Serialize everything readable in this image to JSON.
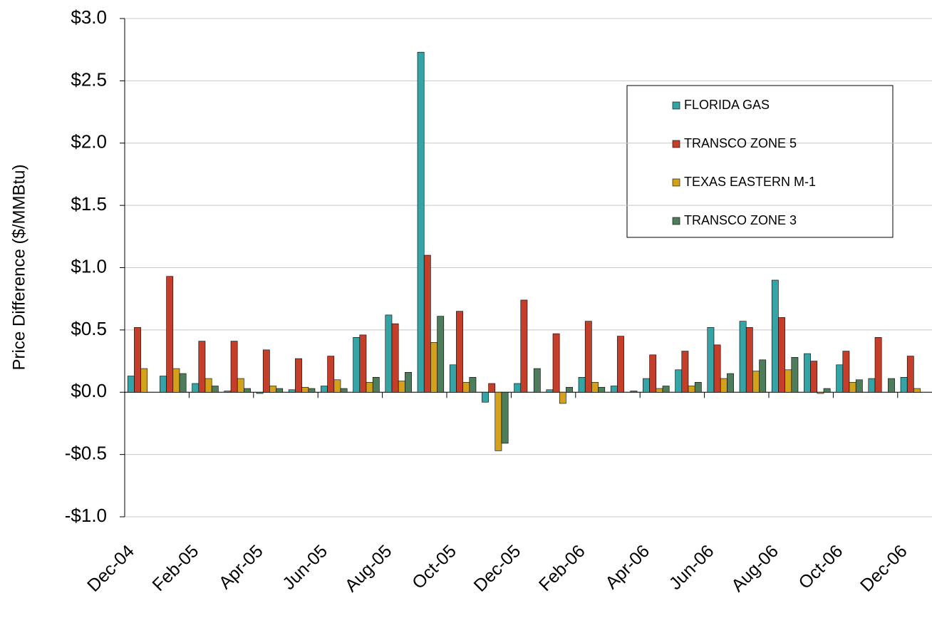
{
  "chart_data": {
    "type": "bar",
    "y_label": "Price Difference ($/MMBtu)",
    "categories": [
      "Dec-04",
      null,
      "Feb-05",
      null,
      "Apr-05",
      null,
      "Jun-05",
      null,
      "Aug-05",
      null,
      "Oct-05",
      null,
      "Dec-05",
      null,
      "Feb-06",
      null,
      "Apr-06",
      null,
      "Jun-06",
      null,
      "Aug-06",
      null,
      "Oct-06",
      null,
      "Dec-06"
    ],
    "series": [
      {
        "name": "FLORIDA GAS",
        "color": "#35a4a6",
        "values": [
          0.13,
          0.13,
          0.07,
          0.01,
          -0.01,
          0.02,
          0.05,
          0.44,
          0.62,
          2.73,
          0.22,
          -0.08,
          0.07,
          0.02,
          0.12,
          0.05,
          0.11,
          0.18,
          0.52,
          0.57,
          0.9,
          0.31,
          0.22,
          0.11,
          0.12
        ]
      },
      {
        "name": "TRANSCO ZONE 5",
        "color": "#c43e2a",
        "values": [
          0.52,
          0.93,
          0.41,
          0.41,
          0.34,
          0.27,
          0.29,
          0.46,
          0.55,
          1.1,
          0.65,
          0.07,
          0.74,
          0.47,
          0.57,
          0.45,
          0.3,
          0.33,
          0.38,
          0.52,
          0.6,
          0.25,
          0.33,
          0.44,
          0.29
        ]
      },
      {
        "name": "TEXAS EASTERN M-1",
        "color": "#d4a21a",
        "values": [
          0.19,
          0.19,
          0.11,
          0.11,
          0.05,
          0.04,
          0.1,
          0.08,
          0.09,
          0.4,
          0.08,
          -0.47,
          0,
          -0.09,
          0.08,
          0,
          0.03,
          0.05,
          0.11,
          0.17,
          0.18,
          -0.01,
          0.08,
          0,
          0.03
        ]
      },
      {
        "name": "TRANSCO ZONE 3",
        "color": "#4e7d5b",
        "values": [
          null,
          0.15,
          0.05,
          0.03,
          0.03,
          0.03,
          0.03,
          0.12,
          0.16,
          0.61,
          0.12,
          -0.41,
          0.19,
          0.04,
          0.04,
          0.01,
          0.05,
          0.08,
          0.15,
          0.26,
          0.28,
          0.03,
          0.1,
          0.11,
          null
        ]
      }
    ],
    "ylim": [
      -1.0,
      3.0
    ],
    "yticks": [
      {
        "value": -1.0,
        "label": "-$1.0"
      },
      {
        "value": -0.5,
        "label": "-$0.5"
      },
      {
        "value": 0,
        "label": "$0.0"
      },
      {
        "value": 0.5,
        "label": "$0.5"
      },
      {
        "value": 1.0,
        "label": "$1.0"
      },
      {
        "value": 1.5,
        "label": "$1.5"
      },
      {
        "value": 2.0,
        "label": "$2.0"
      },
      {
        "value": 2.5,
        "label": "$2.5"
      },
      {
        "value": 3.0,
        "label": "$3.0"
      }
    ],
    "grid": true
  }
}
